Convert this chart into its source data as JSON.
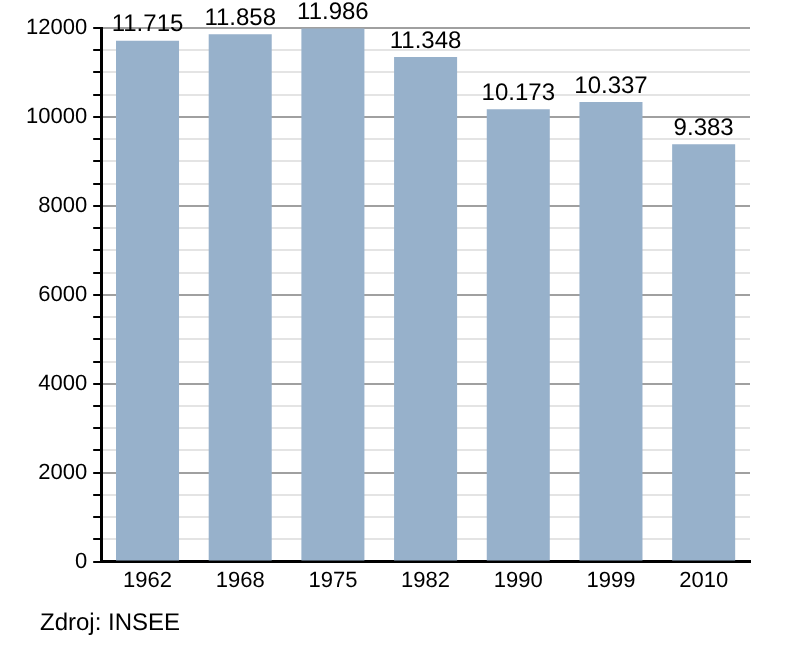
{
  "chart_data": {
    "type": "bar",
    "categories": [
      "1962",
      "1968",
      "1975",
      "1982",
      "1990",
      "1999",
      "2010"
    ],
    "values": [
      11715,
      11858,
      11986,
      11348,
      10173,
      10337,
      9383
    ],
    "value_labels": [
      "11.715",
      "11.858",
      "11.986",
      "11.348",
      "10.173",
      "10.337",
      "9.383"
    ],
    "color": "#97b1cb",
    "ylim": [
      0,
      12000
    ],
    "yticks": [
      0,
      {
        "value": 500,
        "label": null
      },
      {
        "value": 1000,
        "label": null
      },
      {
        "value": 1500,
        "label": null
      },
      2000,
      {
        "value": 2500,
        "label": null
      },
      {
        "value": 3000,
        "label": null
      },
      {
        "value": 3500,
        "label": null
      },
      4000,
      {
        "value": 4500,
        "label": null
      },
      {
        "value": 5000,
        "label": null
      },
      {
        "value": 5500,
        "label": null
      },
      6000,
      {
        "value": 6500,
        "label": null
      },
      {
        "value": 7000,
        "label": null
      },
      {
        "value": 7500,
        "label": null
      },
      8000,
      {
        "value": 8500,
        "label": null
      },
      {
        "value": 9000,
        "label": null
      },
      {
        "value": 9500,
        "label": null
      },
      10000,
      {
        "value": 10500,
        "label": null
      },
      {
        "value": 11000,
        "label": null
      },
      {
        "value": 11500,
        "label": null
      },
      12000
    ],
    "grid": "y",
    "annotations": [
      "Zdroj: INSEE"
    ]
  }
}
